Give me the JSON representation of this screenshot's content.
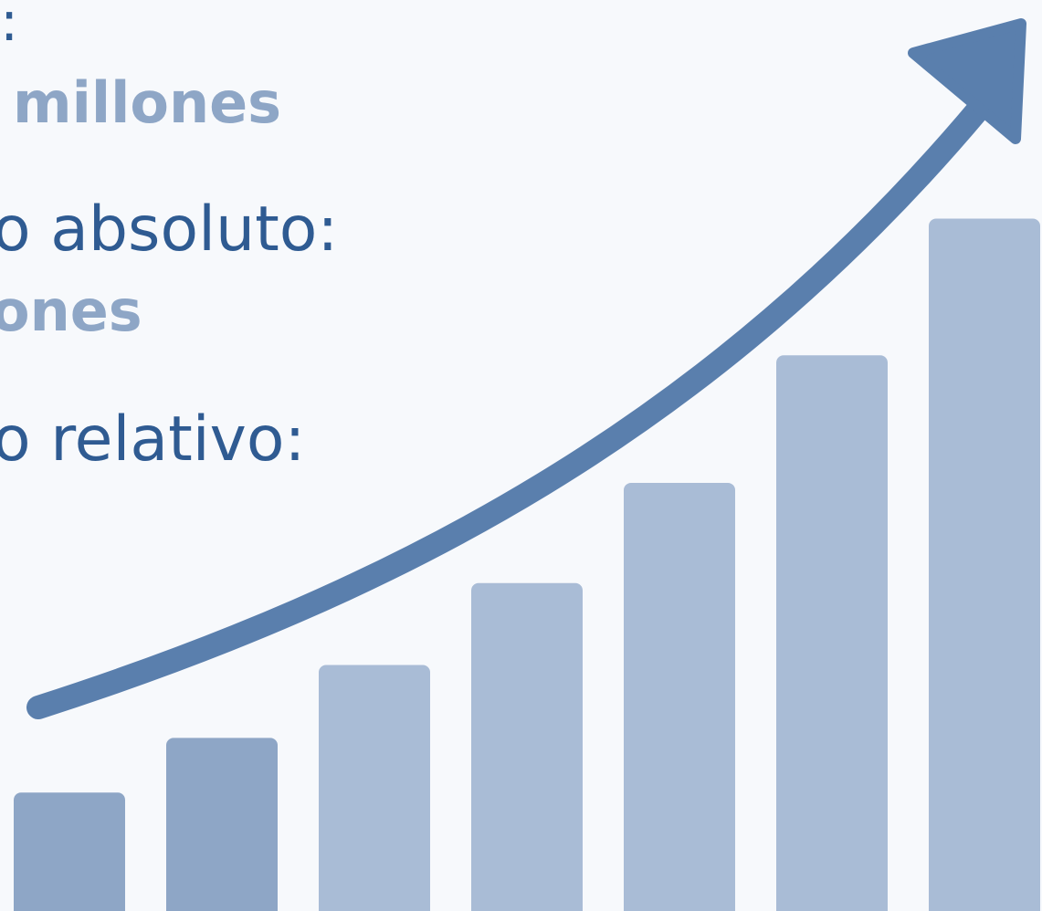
{
  "text_lines": {
    "line1": ":",
    "line2": "millones",
    "line3": "o absoluto:",
    "line4": "ones",
    "line5": "o relativo:"
  },
  "colors": {
    "background": "#f7f9fc",
    "arrow": "#5a7fad",
    "bar_light": "#a9bcd6",
    "bar_dark": "#8ea6c6",
    "text_dark": "#2f5b92",
    "text_light": "#8ea6c6"
  },
  "chart_data": {
    "type": "bar",
    "categories": [
      "",
      "",
      "",
      "",
      "",
      "",
      ""
    ],
    "values": [
      13,
      19,
      27,
      36,
      47,
      61,
      76
    ],
    "ylim": [
      0,
      100
    ],
    "grid": false,
    "legend": "none",
    "trend_arrow": "increasing"
  }
}
